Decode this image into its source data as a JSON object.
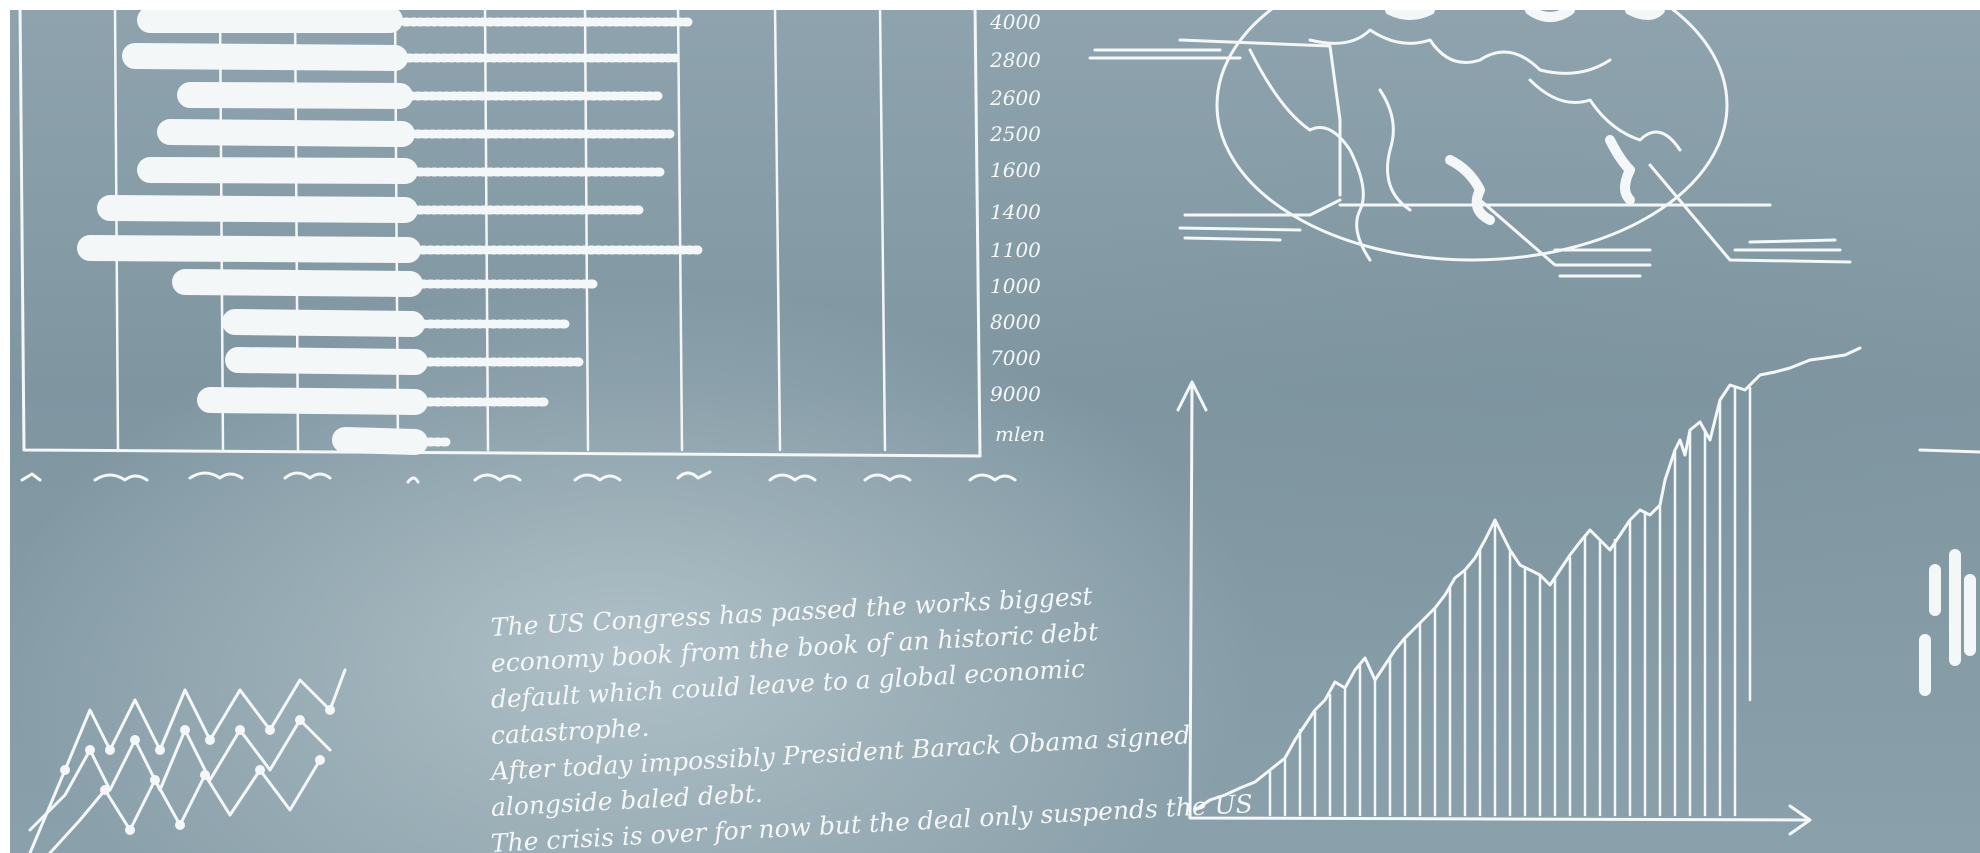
{
  "board": {
    "background": "#8ea3ad",
    "chalk": "#f4f7f8"
  },
  "bar_sketch": {
    "y_labels": [
      "4000",
      "2800",
      "2600",
      "2500",
      "1600",
      "1400",
      "1100",
      "1000",
      "8000",
      "7000",
      "9000"
    ],
    "y_unit": "mlen"
  },
  "notes": {
    "lines": [
      "The US Congress has passed the works biggest",
      "economy book from the book of an historic debt",
      "default which could leave to a global economic",
      "catastrophe.",
      "After today impossibly President Barack Obama signed",
      "alongside baled debt.",
      "The crisis is over for now but the deal only suspends the US"
    ]
  }
}
